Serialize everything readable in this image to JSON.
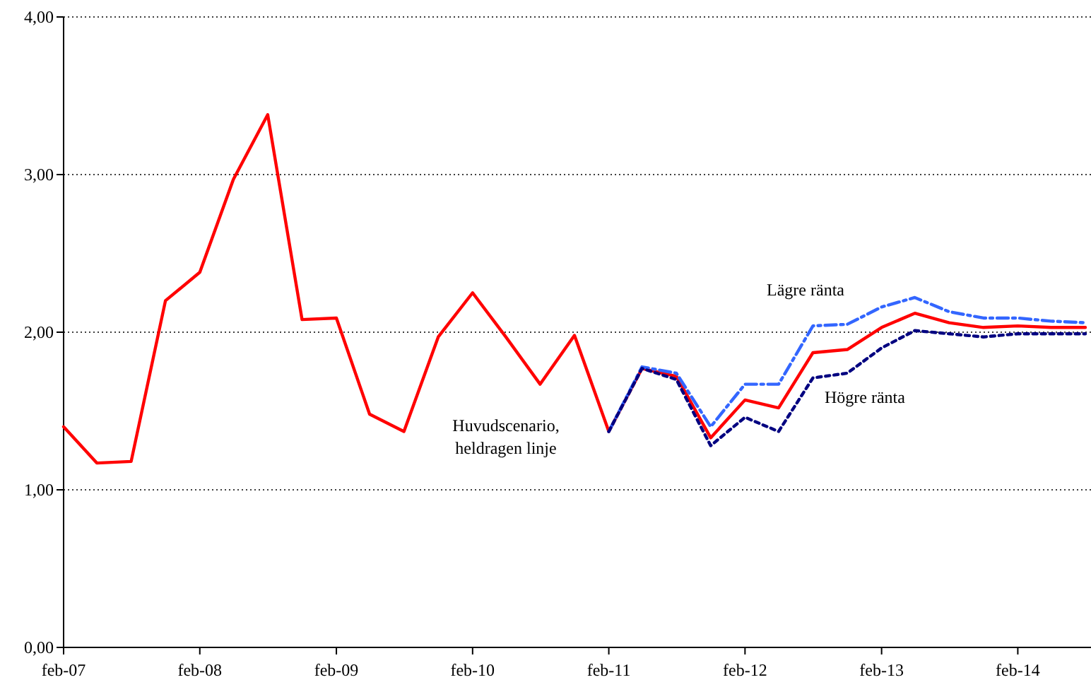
{
  "chart_data": {
    "type": "line",
    "xlim": [
      "2007-02",
      "2014-08"
    ],
    "ylim": [
      0,
      4
    ],
    "xticks": [
      {
        "value": "2007-02",
        "label": "feb-07"
      },
      {
        "value": "2008-02",
        "label": "feb-08"
      },
      {
        "value": "2009-02",
        "label": "feb-09"
      },
      {
        "value": "2010-02",
        "label": "feb-10"
      },
      {
        "value": "2011-02",
        "label": "feb-11"
      },
      {
        "value": "2012-02",
        "label": "feb-12"
      },
      {
        "value": "2013-02",
        "label": "feb-13"
      },
      {
        "value": "2014-02",
        "label": "feb-14"
      }
    ],
    "yticks": [
      {
        "value": 0,
        "label": "0,00"
      },
      {
        "value": 1,
        "label": "1,00"
      },
      {
        "value": 2,
        "label": "2,00"
      },
      {
        "value": 3,
        "label": "3,00"
      },
      {
        "value": 4,
        "label": "4,00"
      }
    ],
    "grid": "y",
    "marker": "none",
    "x": [
      "2007-02",
      "2007-05",
      "2007-08",
      "2007-11",
      "2008-02",
      "2008-05",
      "2008-08",
      "2008-11",
      "2009-02",
      "2009-05",
      "2009-08",
      "2009-11",
      "2010-02",
      "2010-05",
      "2010-08",
      "2010-11",
      "2011-02",
      "2011-05",
      "2011-08",
      "2011-11",
      "2012-02",
      "2012-05",
      "2012-08",
      "2012-11",
      "2013-02",
      "2013-05",
      "2013-08",
      "2013-11",
      "2014-02",
      "2014-05",
      "2014-08"
    ],
    "series": [
      {
        "name": "Huvudscenario, heldragen linje",
        "color": "#ff0000",
        "line_style": "solid",
        "values": [
          1.4,
          1.17,
          1.18,
          2.2,
          2.38,
          2.97,
          3.38,
          2.08,
          2.09,
          1.48,
          1.37,
          1.97,
          2.25,
          1.97,
          1.67,
          1.98,
          1.37,
          1.77,
          1.72,
          1.33,
          1.57,
          1.52,
          1.87,
          1.89,
          2.03,
          2.12,
          2.06,
          2.03,
          2.04,
          2.03,
          2.03
        ]
      },
      {
        "name": "Lägre ränta",
        "color": "#3366ff",
        "line_style": "dashed",
        "x": [
          "2011-02",
          "2011-05",
          "2011-08",
          "2011-11",
          "2012-02",
          "2012-05",
          "2012-08",
          "2012-11",
          "2013-02",
          "2013-05",
          "2013-08",
          "2013-11",
          "2014-02",
          "2014-05",
          "2014-08"
        ],
        "values": [
          1.37,
          1.78,
          1.74,
          1.4,
          1.67,
          1.67,
          2.04,
          2.05,
          2.16,
          2.22,
          2.13,
          2.09,
          2.09,
          2.07,
          2.06
        ]
      },
      {
        "name": "Högre ränta",
        "color": "#000080",
        "line_style": "dotted",
        "x": [
          "2011-02",
          "2011-05",
          "2011-08",
          "2011-11",
          "2012-02",
          "2012-05",
          "2012-08",
          "2012-11",
          "2013-02",
          "2013-05",
          "2013-08",
          "2013-11",
          "2014-02",
          "2014-05",
          "2014-08"
        ],
        "values": [
          1.37,
          1.77,
          1.7,
          1.28,
          1.46,
          1.37,
          1.71,
          1.74,
          1.9,
          2.01,
          1.99,
          1.97,
          1.99,
          1.99,
          1.99
        ]
      }
    ]
  }
}
